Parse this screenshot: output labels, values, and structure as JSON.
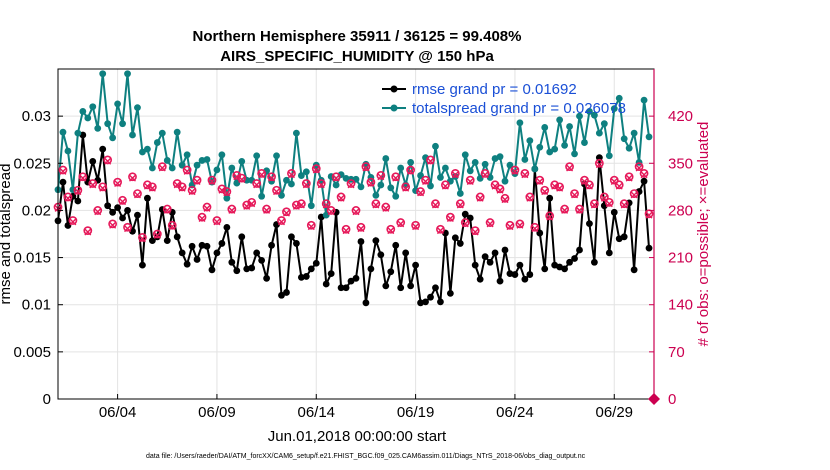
{
  "chart_data": {
    "type": "line",
    "title": "Northern Hemisphere 35911 / 36125 = 99.408%",
    "subtitle": "AIRS_SPECIFIC_HUMIDITY @ 150 hPa",
    "xlabel": "Jun.01,2018 00:00:00 start",
    "ylabel": "rmse and totalspread",
    "y2label": "# of obs: o=possible; ×=evaluated",
    "x_ticks": [
      "06/04",
      "06/09",
      "06/14",
      "06/19",
      "06/24",
      "06/29"
    ],
    "x_tick_days": [
      4,
      9,
      14,
      19,
      24,
      29
    ],
    "xlim": [
      1.0,
      31.0
    ],
    "ylim": [
      0,
      0.035
    ],
    "y_ticks": [
      "0",
      "0.005",
      "0.01",
      "0.015",
      "0.02",
      "0.025",
      "0.03"
    ],
    "y_tick_values": [
      0,
      0.005,
      0.01,
      0.015,
      0.02,
      0.025,
      0.03
    ],
    "y2lim": [
      0,
      490
    ],
    "y2_ticks": [
      "0",
      "70",
      "140",
      "210",
      "280",
      "350",
      "420"
    ],
    "y2_tick_values": [
      0,
      70,
      140,
      210,
      280,
      350,
      420
    ],
    "grid": true,
    "legend_position": "top-right",
    "series": [
      {
        "name": "rmse grand pr = 0.01692",
        "axis": "left",
        "color": "#000000",
        "marker": "filled-circle",
        "x": [
          1.0,
          1.25,
          1.5,
          1.75,
          2.0,
          2.25,
          2.5,
          2.75,
          3.0,
          3.25,
          3.5,
          3.75,
          4.0,
          4.25,
          4.5,
          4.75,
          5.0,
          5.25,
          5.5,
          5.75,
          6.0,
          6.25,
          6.5,
          6.75,
          7.0,
          7.25,
          7.5,
          7.75,
          8.0,
          8.25,
          8.5,
          8.75,
          9.0,
          9.25,
          9.5,
          9.75,
          10.0,
          10.25,
          10.5,
          10.75,
          11.0,
          11.25,
          11.5,
          11.75,
          12.0,
          12.25,
          12.5,
          12.75,
          13.0,
          13.25,
          13.5,
          13.75,
          14.0,
          14.25,
          14.5,
          14.75,
          15.0,
          15.25,
          15.5,
          15.75,
          16.0,
          16.25,
          16.5,
          16.75,
          17.0,
          17.25,
          17.5,
          17.75,
          18.0,
          18.25,
          18.5,
          18.75,
          19.0,
          19.25,
          19.5,
          19.75,
          20.0,
          20.25,
          20.5,
          20.75,
          21.0,
          21.25,
          21.5,
          21.75,
          22.0,
          22.25,
          22.5,
          22.75,
          23.0,
          23.25,
          23.5,
          23.75,
          24.0,
          24.25,
          24.5,
          24.75,
          25.0,
          25.25,
          25.5,
          25.75,
          26.0,
          26.25,
          26.5,
          26.75,
          27.0,
          27.25,
          27.5,
          27.75,
          28.0,
          28.25,
          28.5,
          28.75,
          29.0,
          29.25,
          29.5,
          29.75,
          30.0,
          30.25,
          30.5,
          30.75
        ],
        "y": [
          0.0189,
          0.023,
          0.0184,
          0.0215,
          0.021,
          0.028,
          0.023,
          0.0252,
          0.0232,
          0.0265,
          0.0205,
          0.0198,
          0.0203,
          0.0192,
          0.02,
          0.0178,
          0.0195,
          0.0142,
          0.0213,
          0.0168,
          0.0172,
          0.0201,
          0.0168,
          0.0198,
          0.0172,
          0.0155,
          0.0143,
          0.0162,
          0.0148,
          0.0163,
          0.0162,
          0.0137,
          0.0155,
          0.0165,
          0.0182,
          0.0145,
          0.0136,
          0.0172,
          0.0138,
          0.0139,
          0.0155,
          0.0147,
          0.0128,
          0.0163,
          0.0185,
          0.011,
          0.0113,
          0.0172,
          0.0165,
          0.0129,
          0.013,
          0.0138,
          0.0144,
          0.0193,
          0.0122,
          0.0133,
          0.0198,
          0.0118,
          0.0118,
          0.0125,
          0.0128,
          0.0167,
          0.0102,
          0.0138,
          0.0168,
          0.0153,
          0.012,
          0.0135,
          0.0163,
          0.0118,
          0.0155,
          0.012,
          0.0142,
          0.0102,
          0.0103,
          0.0108,
          0.0118,
          0.0103,
          0.0176,
          0.0112,
          0.0171,
          0.0165,
          0.0196,
          0.0192,
          0.0142,
          0.0127,
          0.0151,
          0.0145,
          0.0155,
          0.0125,
          0.0158,
          0.0133,
          0.0132,
          0.0142,
          0.0127,
          0.0132,
          0.0244,
          0.0176,
          0.0138,
          0.0213,
          0.0142,
          0.014,
          0.0138,
          0.0145,
          0.0149,
          0.0158,
          0.0228,
          0.0186,
          0.0145,
          0.0256,
          0.0205,
          0.0155,
          0.0198,
          0.017,
          0.0172,
          0.0208,
          0.0137,
          0.022,
          0.0231,
          0.016
        ]
      },
      {
        "name": "totalspread grand pr = 0.026078",
        "axis": "left",
        "color": "#0e8080",
        "marker": "filled-circle",
        "x": [
          1.0,
          1.25,
          1.5,
          1.75,
          2.0,
          2.25,
          2.5,
          2.75,
          3.0,
          3.25,
          3.5,
          3.75,
          4.0,
          4.25,
          4.5,
          4.75,
          5.0,
          5.25,
          5.5,
          5.75,
          6.0,
          6.25,
          6.5,
          6.75,
          7.0,
          7.25,
          7.5,
          7.75,
          8.0,
          8.25,
          8.5,
          8.75,
          9.0,
          9.25,
          9.5,
          9.75,
          10.0,
          10.25,
          10.5,
          10.75,
          11.0,
          11.25,
          11.5,
          11.75,
          12.0,
          12.25,
          12.5,
          12.75,
          13.0,
          13.25,
          13.5,
          13.75,
          14.0,
          14.25,
          14.5,
          14.75,
          15.0,
          15.25,
          15.5,
          15.75,
          16.0,
          16.25,
          16.5,
          16.75,
          17.0,
          17.25,
          17.5,
          17.75,
          18.0,
          18.25,
          18.5,
          18.75,
          19.0,
          19.25,
          19.5,
          19.75,
          20.0,
          20.25,
          20.5,
          20.75,
          21.0,
          21.25,
          21.5,
          21.75,
          22.0,
          22.25,
          22.5,
          22.75,
          23.0,
          23.25,
          23.5,
          23.75,
          24.0,
          24.25,
          24.5,
          24.75,
          25.0,
          25.25,
          25.5,
          25.75,
          26.0,
          26.25,
          26.5,
          26.75,
          27.0,
          27.25,
          27.5,
          27.75,
          28.0,
          28.25,
          28.5,
          28.75,
          29.0,
          29.25,
          29.5,
          29.75,
          30.0,
          30.25,
          30.5,
          30.75
        ],
        "y": [
          0.0222,
          0.0283,
          0.0263,
          0.0222,
          0.0282,
          0.0305,
          0.0298,
          0.031,
          0.0287,
          0.0345,
          0.0292,
          0.0277,
          0.0313,
          0.0292,
          0.0345,
          0.028,
          0.0309,
          0.0262,
          0.0265,
          0.0245,
          0.0272,
          0.0282,
          0.0253,
          0.0245,
          0.0283,
          0.0248,
          0.0259,
          0.0227,
          0.0248,
          0.0253,
          0.0254,
          0.023,
          0.0243,
          0.0259,
          0.0213,
          0.0245,
          0.0229,
          0.0252,
          0.0232,
          0.0232,
          0.0258,
          0.0215,
          0.0242,
          0.0231,
          0.0258,
          0.0216,
          0.0232,
          0.0228,
          0.0282,
          0.0237,
          0.0241,
          0.0205,
          0.0248,
          0.0232,
          0.0195,
          0.0236,
          0.0227,
          0.0238,
          0.0234,
          0.0233,
          0.0233,
          0.0225,
          0.0249,
          0.0235,
          0.0216,
          0.0227,
          0.0255,
          0.0224,
          0.0215,
          0.0245,
          0.0227,
          0.0251,
          0.0221,
          0.0237,
          0.0256,
          0.0226,
          0.0268,
          0.0235,
          0.0245,
          0.0231,
          0.0236,
          0.0218,
          0.0259,
          0.0242,
          0.0251,
          0.0234,
          0.0249,
          0.0235,
          0.0255,
          0.0257,
          0.0231,
          0.0248,
          0.0239,
          0.0293,
          0.0254,
          0.0274,
          0.0244,
          0.0267,
          0.0288,
          0.0262,
          0.0265,
          0.0296,
          0.0269,
          0.0289,
          0.026,
          0.03,
          0.0272,
          0.0305,
          0.0301,
          0.0282,
          0.0292,
          0.0258,
          0.0308,
          0.0319,
          0.0276,
          0.0266,
          0.0282,
          0.0251,
          0.0317,
          0.0278
        ]
      },
      {
        "name": "possible",
        "axis": "right",
        "color": "#e6195a",
        "marker": "open-circle",
        "x": [
          1.0,
          1.25,
          1.5,
          1.75,
          2.0,
          2.25,
          2.5,
          2.75,
          3.0,
          3.25,
          3.5,
          3.75,
          4.0,
          4.25,
          4.5,
          4.75,
          5.0,
          5.25,
          5.5,
          5.75,
          6.0,
          6.25,
          6.5,
          6.75,
          7.0,
          7.25,
          7.5,
          7.75,
          8.0,
          8.25,
          8.5,
          8.75,
          9.0,
          9.25,
          9.5,
          9.75,
          10.0,
          10.25,
          10.5,
          10.75,
          11.0,
          11.25,
          11.5,
          11.75,
          12.0,
          12.25,
          12.5,
          12.75,
          13.0,
          13.25,
          13.5,
          13.75,
          14.0,
          14.25,
          14.5,
          14.75,
          15.0,
          15.25,
          15.5,
          15.75,
          16.0,
          16.25,
          16.5,
          16.75,
          17.0,
          17.25,
          17.5,
          17.75,
          18.0,
          18.25,
          18.5,
          18.75,
          19.0,
          19.25,
          19.5,
          19.75,
          20.0,
          20.25,
          20.5,
          20.75,
          21.0,
          21.25,
          21.5,
          21.75,
          22.0,
          22.25,
          22.5,
          22.75,
          23.0,
          23.25,
          23.5,
          23.75,
          24.0,
          24.25,
          24.5,
          24.75,
          25.0,
          25.25,
          25.5,
          25.75,
          26.0,
          26.25,
          26.5,
          26.75,
          27.0,
          27.25,
          27.5,
          27.75,
          28.0,
          28.25,
          28.5,
          28.75,
          29.0,
          29.25,
          29.5,
          29.75,
          30.0,
          30.25,
          30.5,
          30.75
        ],
        "y": [
          285,
          340,
          300,
          265,
          310,
          330,
          250,
          320,
          280,
          315,
          355,
          260,
          322,
          295,
          255,
          330,
          305,
          240,
          318,
          315,
          245,
          345,
          282,
          258,
          320,
          315,
          340,
          310,
          325,
          270,
          285,
          325,
          265,
          312,
          308,
          282,
          332,
          328,
          288,
          292,
          320,
          335,
          282,
          330,
          310,
          265,
          278,
          335,
          288,
          290,
          320,
          258,
          342,
          320,
          290,
          280,
          330,
          300,
          252,
          320,
          280,
          255,
          345,
          322,
          290,
          332,
          285,
          252,
          330,
          262,
          315,
          340,
          258,
          308,
          325,
          355,
          290,
          252,
          318,
          270,
          335,
          290,
          262,
          325,
          250,
          300,
          335,
          262,
          318,
          312,
          298,
          258,
          340,
          260,
          335,
          300,
          255,
          325,
          310,
          272,
          318,
          315,
          282,
          345,
          305,
          282,
          325,
          318,
          290,
          350,
          300,
          292,
          325,
          318,
          290,
          330,
          305,
          345,
          335,
          275
        ]
      },
      {
        "name": "evaluated",
        "axis": "right",
        "color": "#e6195a",
        "marker": "x",
        "x": [
          1.0,
          1.25,
          1.5,
          1.75,
          2.0,
          2.25,
          2.5,
          2.75,
          3.0,
          3.25,
          3.5,
          3.75,
          4.0,
          4.25,
          4.5,
          4.75,
          5.0,
          5.25,
          5.5,
          5.75,
          6.0,
          6.25,
          6.5,
          6.75,
          7.0,
          7.25,
          7.5,
          7.75,
          8.0,
          8.25,
          8.5,
          8.75,
          9.0,
          9.25,
          9.5,
          9.75,
          10.0,
          10.25,
          10.5,
          10.75,
          11.0,
          11.25,
          11.5,
          11.75,
          12.0,
          12.25,
          12.5,
          12.75,
          13.0,
          13.25,
          13.5,
          13.75,
          14.0,
          14.25,
          14.5,
          14.75,
          15.0,
          15.25,
          15.5,
          15.75,
          16.0,
          16.25,
          16.5,
          16.75,
          17.0,
          17.25,
          17.5,
          17.75,
          18.0,
          18.25,
          18.5,
          18.75,
          19.0,
          19.25,
          19.5,
          19.75,
          20.0,
          20.25,
          20.5,
          20.75,
          21.0,
          21.25,
          21.5,
          21.75,
          22.0,
          22.25,
          22.5,
          22.75,
          23.0,
          23.25,
          23.5,
          23.75,
          24.0,
          24.25,
          24.5,
          24.75,
          25.0,
          25.25,
          25.5,
          25.75,
          26.0,
          26.25,
          26.5,
          26.75,
          27.0,
          27.25,
          27.5,
          27.75,
          28.0,
          28.25,
          28.5,
          28.75,
          29.0,
          29.25,
          29.5,
          29.75,
          30.0,
          30.25,
          30.5,
          30.75
        ],
        "y": [
          283,
          338,
          298,
          263,
          308,
          328,
          248,
          318,
          278,
          313,
          353,
          258,
          320,
          293,
          253,
          328,
          303,
          238,
          316,
          313,
          243,
          343,
          280,
          256,
          318,
          313,
          338,
          308,
          323,
          268,
          283,
          323,
          263,
          310,
          306,
          280,
          330,
          326,
          286,
          290,
          318,
          333,
          280,
          328,
          308,
          263,
          276,
          333,
          286,
          288,
          318,
          256,
          340,
          318,
          288,
          278,
          328,
          298,
          250,
          318,
          278,
          253,
          343,
          320,
          288,
          330,
          283,
          250,
          328,
          260,
          313,
          338,
          256,
          306,
          323,
          353,
          288,
          250,
          316,
          268,
          333,
          288,
          260,
          323,
          248,
          298,
          333,
          260,
          316,
          310,
          296,
          256,
          338,
          258,
          333,
          298,
          253,
          323,
          308,
          270,
          316,
          313,
          280,
          343,
          303,
          280,
          323,
          316,
          288,
          348,
          298,
          290,
          323,
          316,
          288,
          328,
          303,
          343,
          333,
          273
        ]
      }
    ]
  },
  "footer": "data file: /Users/raeder/DAI/ATM_forcXX/CAM6_setup/f.e21.FHIST_BGC.f09_025.CAM6assim.011/Diags_NTrS_2018-06/obs_diag_output.nc",
  "colors": {
    "axis_right": "#cc0050",
    "grid": "#e3e3e3",
    "legend_text": "#1a4fd6"
  }
}
